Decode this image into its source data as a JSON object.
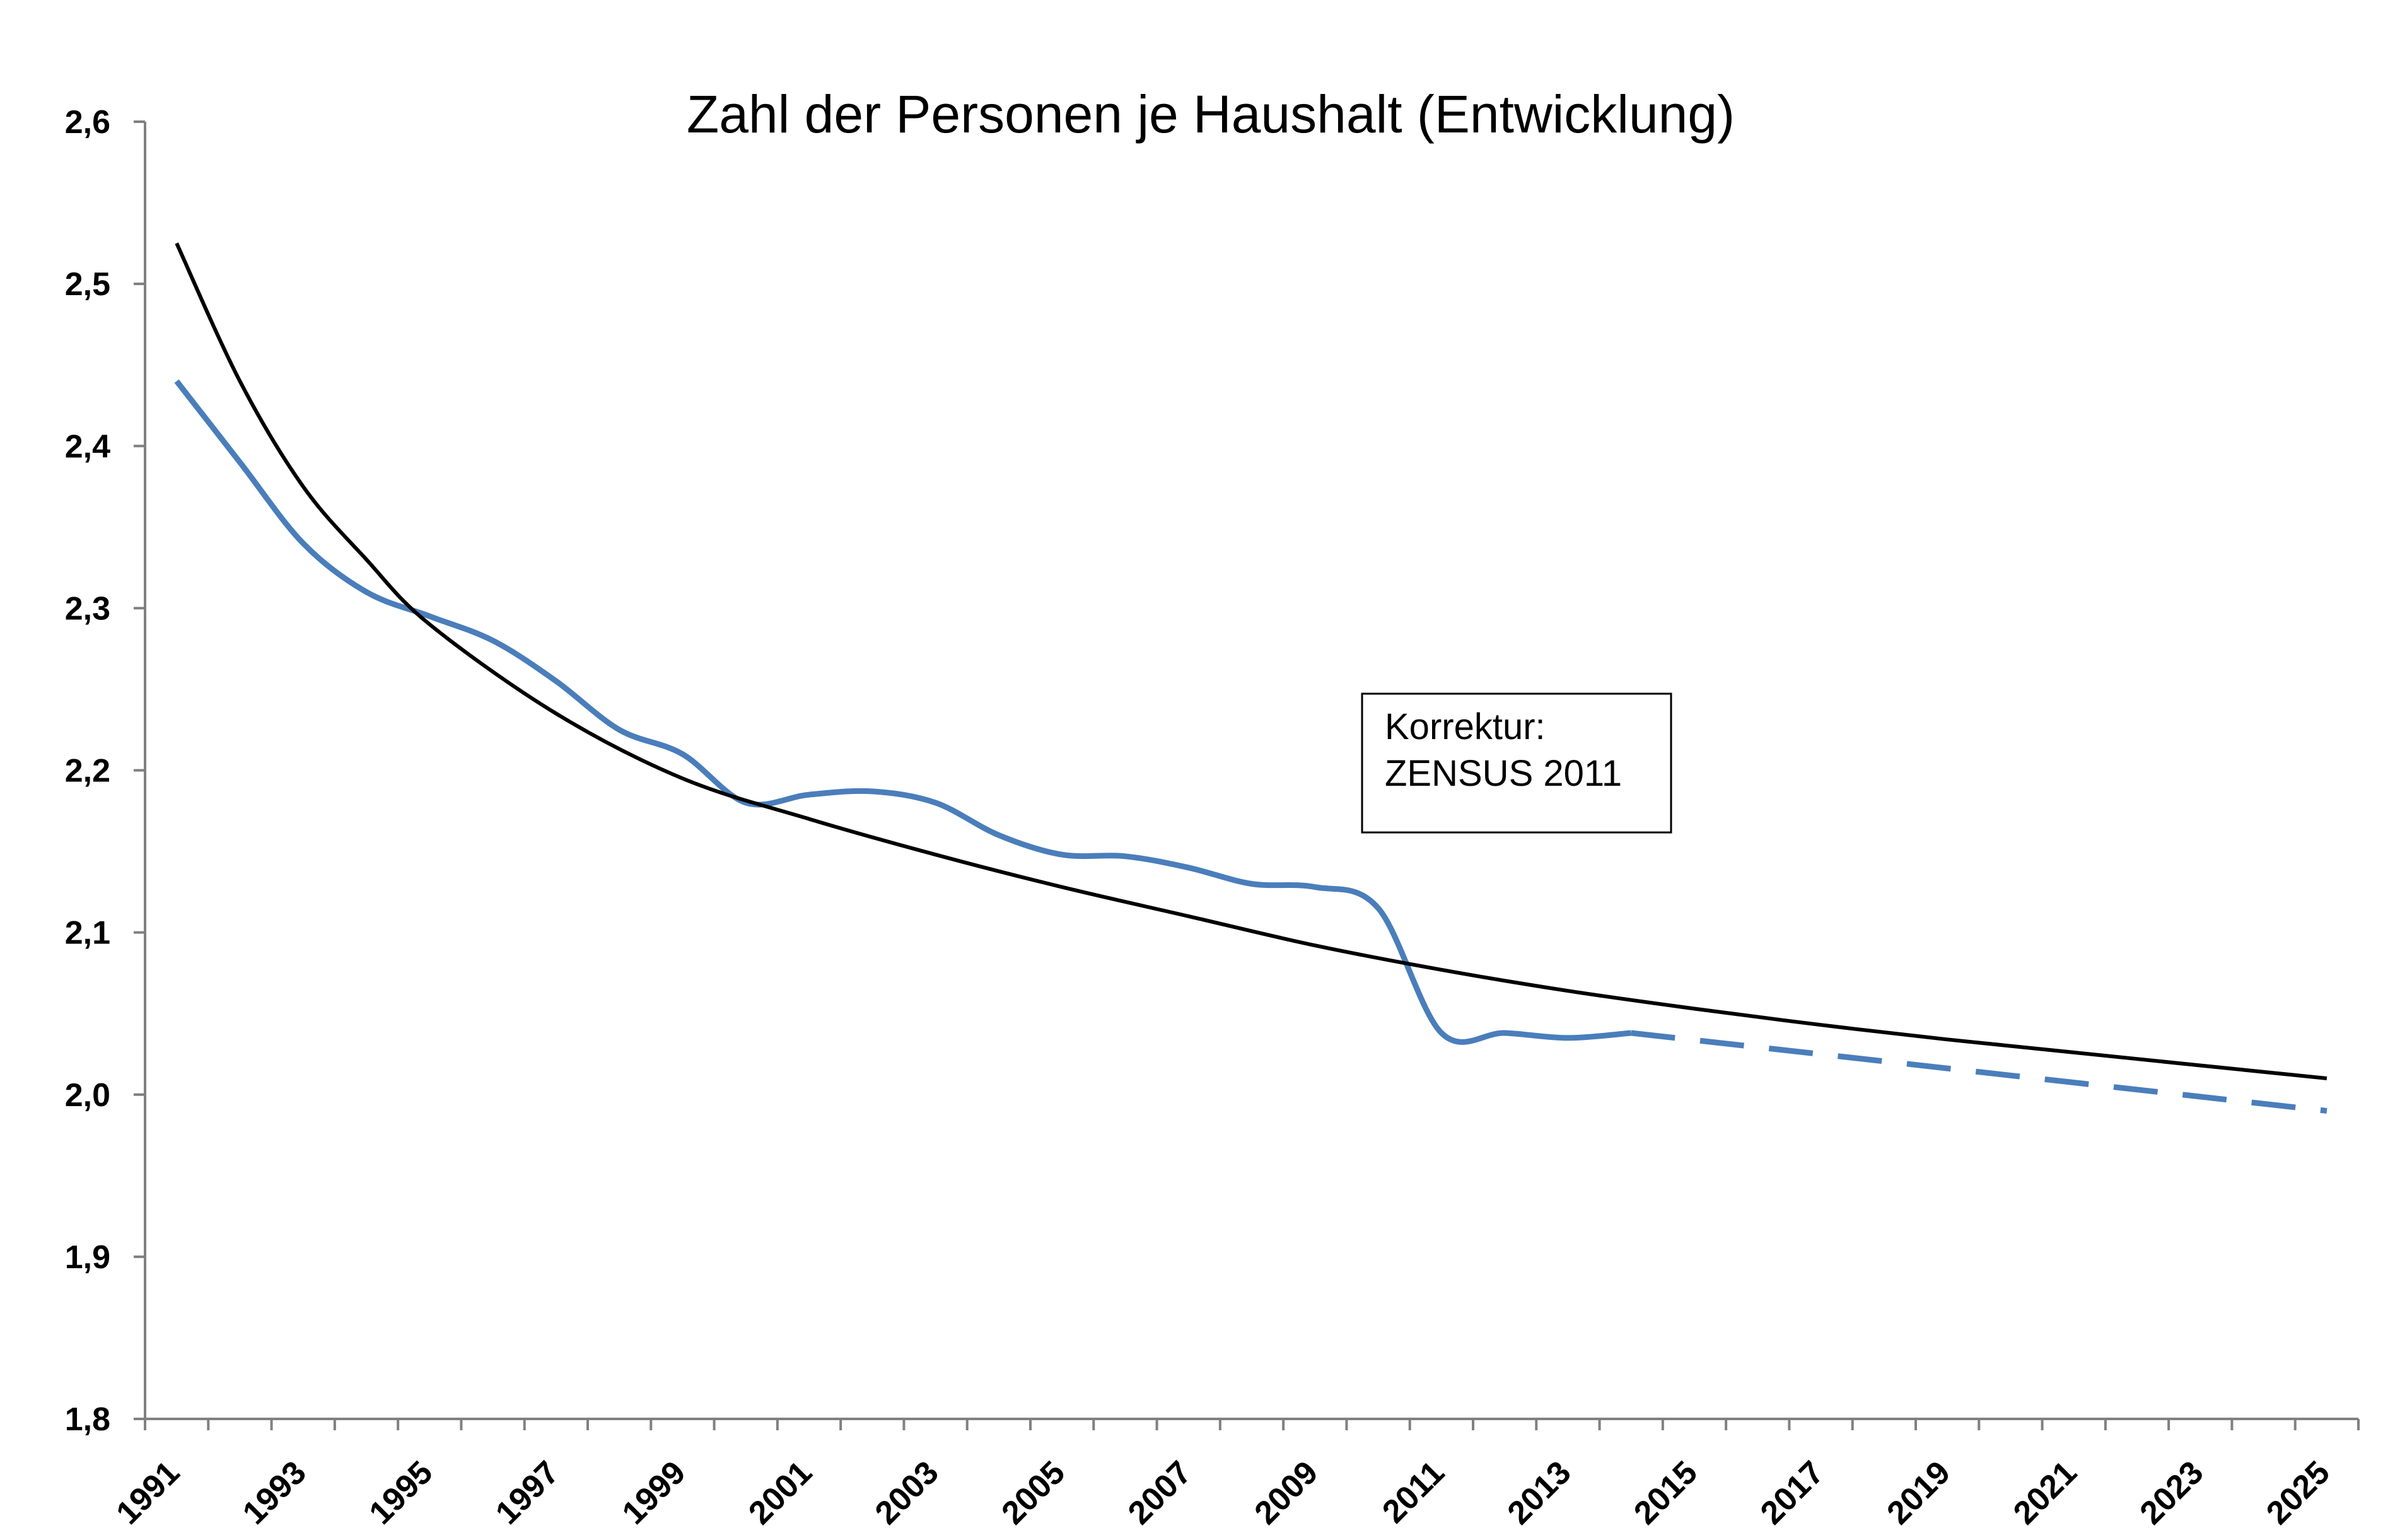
{
  "chart_data": {
    "type": "line",
    "title": "Zahl der Personen je Haushalt (Entwicklung)",
    "xlabel": "",
    "ylabel": "",
    "xlim": [
      1990.5,
      2025.5
    ],
    "ylim": [
      1.8,
      2.6
    ],
    "yticks": [
      "2,6",
      "2,5",
      "2,4",
      "2,3",
      "2,2",
      "2,1",
      "2,0",
      "1,9",
      "1,8"
    ],
    "ytick_values": [
      2.6,
      2.5,
      2.4,
      2.3,
      2.2,
      2.1,
      2.0,
      1.9,
      1.8
    ],
    "xticks": [
      "1991",
      "1993",
      "1995",
      "1997",
      "1999",
      "2001",
      "2003",
      "2005",
      "2007",
      "2009",
      "2011",
      "2013",
      "2015",
      "2017",
      "2019",
      "2021",
      "2023",
      "2025"
    ],
    "xtick_values": [
      1991,
      1993,
      1995,
      1997,
      1999,
      2001,
      2003,
      2005,
      2007,
      2009,
      2011,
      2013,
      2015,
      2017,
      2019,
      2021,
      2023,
      2025
    ],
    "grid": false,
    "legend": "none",
    "series": [
      {
        "kind": "actual",
        "color": "#4a7ebb",
        "style": "solid",
        "x": [
          1991,
          1992,
          1993,
          1994,
          1995,
          1996,
          1997,
          1998,
          1999,
          2000,
          2001,
          2002,
          2003,
          2004,
          2005,
          2006,
          2007,
          2008,
          2009,
          2010,
          2011,
          2012,
          2013,
          2014
        ],
        "y": [
          2.44,
          2.39,
          2.34,
          2.31,
          2.295,
          2.28,
          2.255,
          2.225,
          2.21,
          2.18,
          2.185,
          2.187,
          2.18,
          2.16,
          2.148,
          2.147,
          2.14,
          2.13,
          2.128,
          2.115,
          2.038,
          2.038,
          2.035,
          2.038
        ]
      },
      {
        "kind": "projection",
        "color": "#4a7ebb",
        "style": "dashed",
        "x": [
          2014,
          2025
        ],
        "y": [
          2.038,
          1.99
        ]
      },
      {
        "kind": "trend",
        "color": "#000000",
        "style": "solid",
        "x": [
          1991,
          1992,
          1993,
          1994,
          1995,
          1997,
          1999,
          2001,
          2003,
          2005,
          2007,
          2009,
          2011,
          2013,
          2015,
          2017,
          2019,
          2021,
          2023,
          2025
        ],
        "y": [
          2.525,
          2.44,
          2.375,
          2.33,
          2.29,
          2.235,
          2.195,
          2.17,
          2.148,
          2.128,
          2.11,
          2.092,
          2.077,
          2.064,
          2.053,
          2.043,
          2.034,
          2.026,
          2.018,
          2.01
        ]
      }
    ],
    "annotations": [
      {
        "lines": [
          "Korrektur:",
          "ZENSUS 2011"
        ]
      }
    ]
  }
}
